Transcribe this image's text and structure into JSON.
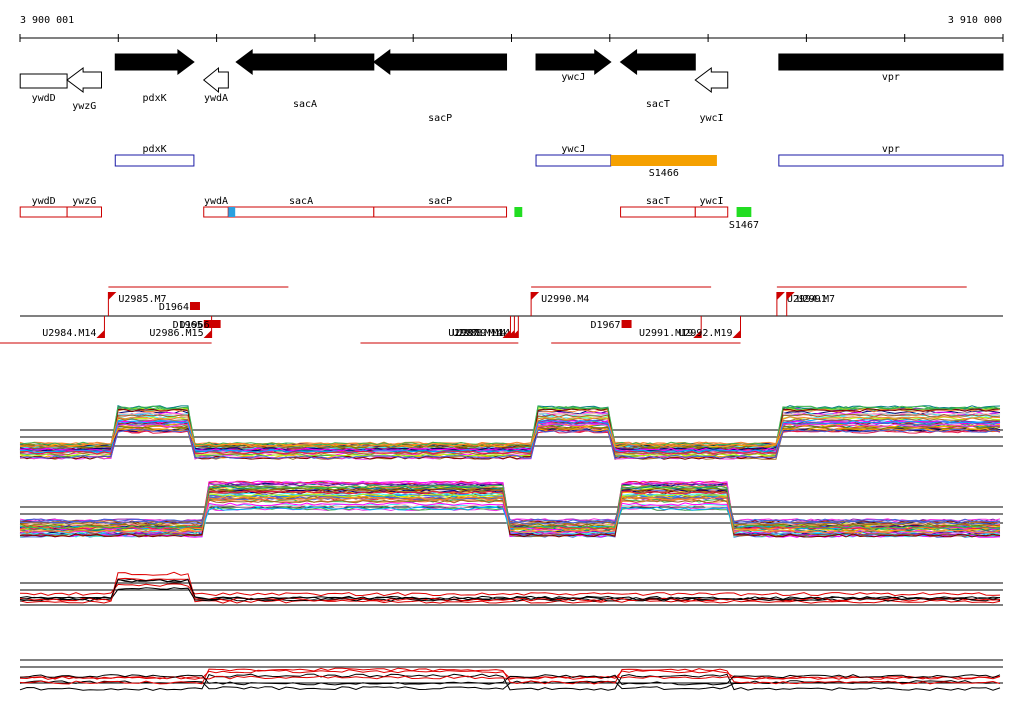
{
  "ruler": {
    "start_label": "3 900 001",
    "end_label": "3 910 000",
    "start": 3900001,
    "end": 3910000
  },
  "colors": {
    "gene_fill": "#000000",
    "gene_outline": "#000000",
    "blue_track": "#1a1aa6",
    "red_track": "#cc0000",
    "orange": "#f5a000",
    "green": "#22dd22",
    "light_blue": "#2aa0e0"
  },
  "genes": [
    {
      "name": "ywdD",
      "start": 3900003,
      "end": 3900480,
      "strand": "-",
      "filled": false
    },
    {
      "name": "ywzG",
      "start": 3900480,
      "end": 3900830,
      "strand": "-",
      "filled": false
    },
    {
      "name": "pdxK",
      "start": 3900970,
      "end": 3901770,
      "strand": "+",
      "filled": true
    },
    {
      "name": "ywdA",
      "start": 3901870,
      "end": 3902120,
      "strand": "-",
      "filled": false
    },
    {
      "name": "sacA",
      "start": 3902200,
      "end": 3903600,
      "strand": "-",
      "filled": true
    },
    {
      "name": "sacP",
      "start": 3903600,
      "end": 3904950,
      "strand": "-",
      "filled": true
    },
    {
      "name": "ywcJ",
      "start": 3905250,
      "end": 3906010,
      "strand": "+",
      "filled": true
    },
    {
      "name": "sacT",
      "start": 3906110,
      "end": 3906870,
      "strand": "-",
      "filled": true
    },
    {
      "name": "ywcI",
      "start": 3906870,
      "end": 3907200,
      "strand": "-",
      "filled": false
    },
    {
      "name": "vpr",
      "start": 3907720,
      "end": 3910000,
      "strand": "+",
      "filled": true
    }
  ],
  "blue_features": [
    {
      "name": "pdxK",
      "start": 3900970,
      "end": 3901770
    },
    {
      "name": "ywcJ",
      "start": 3905250,
      "end": 3906010
    },
    {
      "name": "vpr",
      "start": 3907720,
      "end": 3910000
    }
  ],
  "orange_feature": {
    "name": "S1466",
    "start": 3906010,
    "end": 3907090
  },
  "red_features": [
    {
      "name": "ywdD",
      "start": 3900003,
      "end": 3900480
    },
    {
      "name": "ywzG",
      "start": 3900480,
      "end": 3900830
    },
    {
      "name": "ywdA",
      "start": 3901870,
      "end": 3902120
    },
    {
      "name": "sacA",
      "start": 3902120,
      "end": 3903600
    },
    {
      "name": "sacP",
      "start": 3903600,
      "end": 3904950
    },
    {
      "name": "sacT",
      "start": 3906110,
      "end": 3906870
    },
    {
      "name": "ywcI",
      "start": 3906870,
      "end": 3907200
    }
  ],
  "small_marks": [
    {
      "name": "S1467",
      "start": 3907290,
      "end": 3907440,
      "color": "green"
    },
    {
      "name": "",
      "start": 3905030,
      "end": 3905110,
      "color": "green"
    },
    {
      "name": "",
      "start": 3902120,
      "end": 3902190,
      "color": "light_blue"
    }
  ],
  "tss_labels": {
    "above": [
      {
        "name": "U2985.M7",
        "pos": 3900900
      },
      {
        "name": "U2990.M4",
        "pos": 3905200
      },
      {
        "name": "U2994.M7",
        "pos": 3907700
      },
      {
        "name": "U2991",
        "pos": 3907800
      }
    ],
    "below": [
      {
        "name": "U2984.M14",
        "pos": 3900860
      },
      {
        "name": "U2986.M15",
        "pos": 3901950
      },
      {
        "name": "U2989.M14",
        "pos": 3905070
      },
      {
        "name": "U2988.M14",
        "pos": 3905030
      },
      {
        "name": "U2987.M14",
        "pos": 3904990
      },
      {
        "name": "U2991.M19",
        "pos": 3906930
      },
      {
        "name": "U2992.M19",
        "pos": 3907330
      }
    ],
    "boxes": [
      {
        "name": "D1964",
        "pos": 3901730
      },
      {
        "name": "D1965",
        "pos": 3901870
      },
      {
        "name": "D1966",
        "pos": 3901940
      },
      {
        "name": "D1967",
        "pos": 3906120
      }
    ]
  },
  "expression_panels": [
    {
      "id": "panel1",
      "kind": "multicolor",
      "pattern": "high_on_pdxK_ywcJ_vpr"
    },
    {
      "id": "panel2",
      "kind": "multicolor",
      "pattern": "high_on_sacA_sacT"
    },
    {
      "id": "panel3",
      "kind": "redblack",
      "pattern": "high_on_pdxK"
    },
    {
      "id": "panel4",
      "kind": "redblack",
      "pattern": "high_on_sacA_sacT"
    }
  ]
}
